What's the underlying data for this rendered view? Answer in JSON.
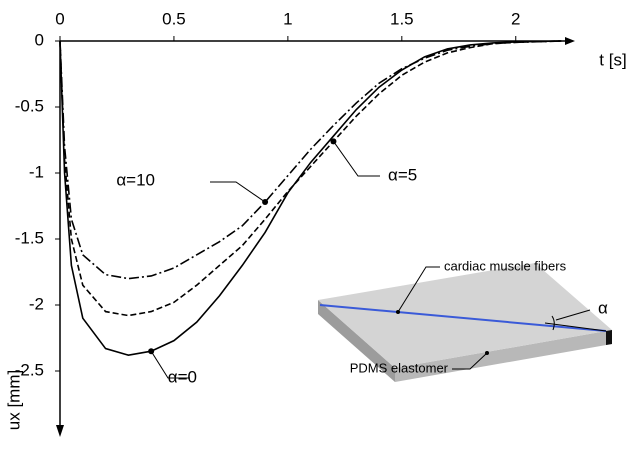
{
  "chart_data": {
    "type": "line",
    "x_label": "t [s]",
    "y_label": "ux [mm]",
    "x": [
      0,
      0.02,
      0.05,
      0.1,
      0.2,
      0.3,
      0.4,
      0.5,
      0.6,
      0.7,
      0.8,
      0.9,
      1.0,
      1.1,
      1.2,
      1.3,
      1.4,
      1.5,
      1.6,
      1.7,
      1.8,
      1.9,
      2.0,
      2.2
    ],
    "series": [
      {
        "name": "α=10",
        "color": "#000000",
        "dash": "dashdot",
        "values": [
          0,
          -0.8,
          -1.35,
          -1.62,
          -1.77,
          -1.8,
          -1.78,
          -1.72,
          -1.62,
          -1.52,
          -1.4,
          -1.22,
          -1.02,
          -0.82,
          -0.64,
          -0.47,
          -0.32,
          -0.21,
          -0.13,
          -0.07,
          -0.04,
          -0.02,
          -0.01,
          0
        ]
      },
      {
        "name": "α=5",
        "color": "#000000",
        "dash": "dashed",
        "values": [
          0,
          -0.9,
          -1.5,
          -1.85,
          -2.05,
          -2.08,
          -2.05,
          -1.98,
          -1.85,
          -1.7,
          -1.55,
          -1.35,
          -1.14,
          -0.95,
          -0.76,
          -0.57,
          -0.4,
          -0.26,
          -0.16,
          -0.09,
          -0.05,
          -0.02,
          -0.01,
          0
        ]
      },
      {
        "name": "α=0",
        "color": "#000000",
        "dash": "solid",
        "values": [
          0,
          -1.0,
          -1.7,
          -2.1,
          -2.33,
          -2.38,
          -2.35,
          -2.27,
          -2.13,
          -1.93,
          -1.7,
          -1.45,
          -1.15,
          -0.92,
          -0.72,
          -0.52,
          -0.35,
          -0.22,
          -0.12,
          -0.06,
          -0.03,
          -0.015,
          -0.007,
          0
        ]
      }
    ],
    "xlim": [
      0,
      2.26
    ],
    "ylim": [
      0,
      -3
    ],
    "xticks": [
      0,
      0.5,
      1,
      1.5,
      2
    ],
    "yticks": [
      0,
      -0.5,
      -1,
      -1.5,
      -2,
      -2.5
    ],
    "grid": false
  },
  "inset": {
    "fibers_label": "cardiac muscle fibers",
    "elastomer_label": "PDMS elastomer",
    "angle_label": "α"
  }
}
